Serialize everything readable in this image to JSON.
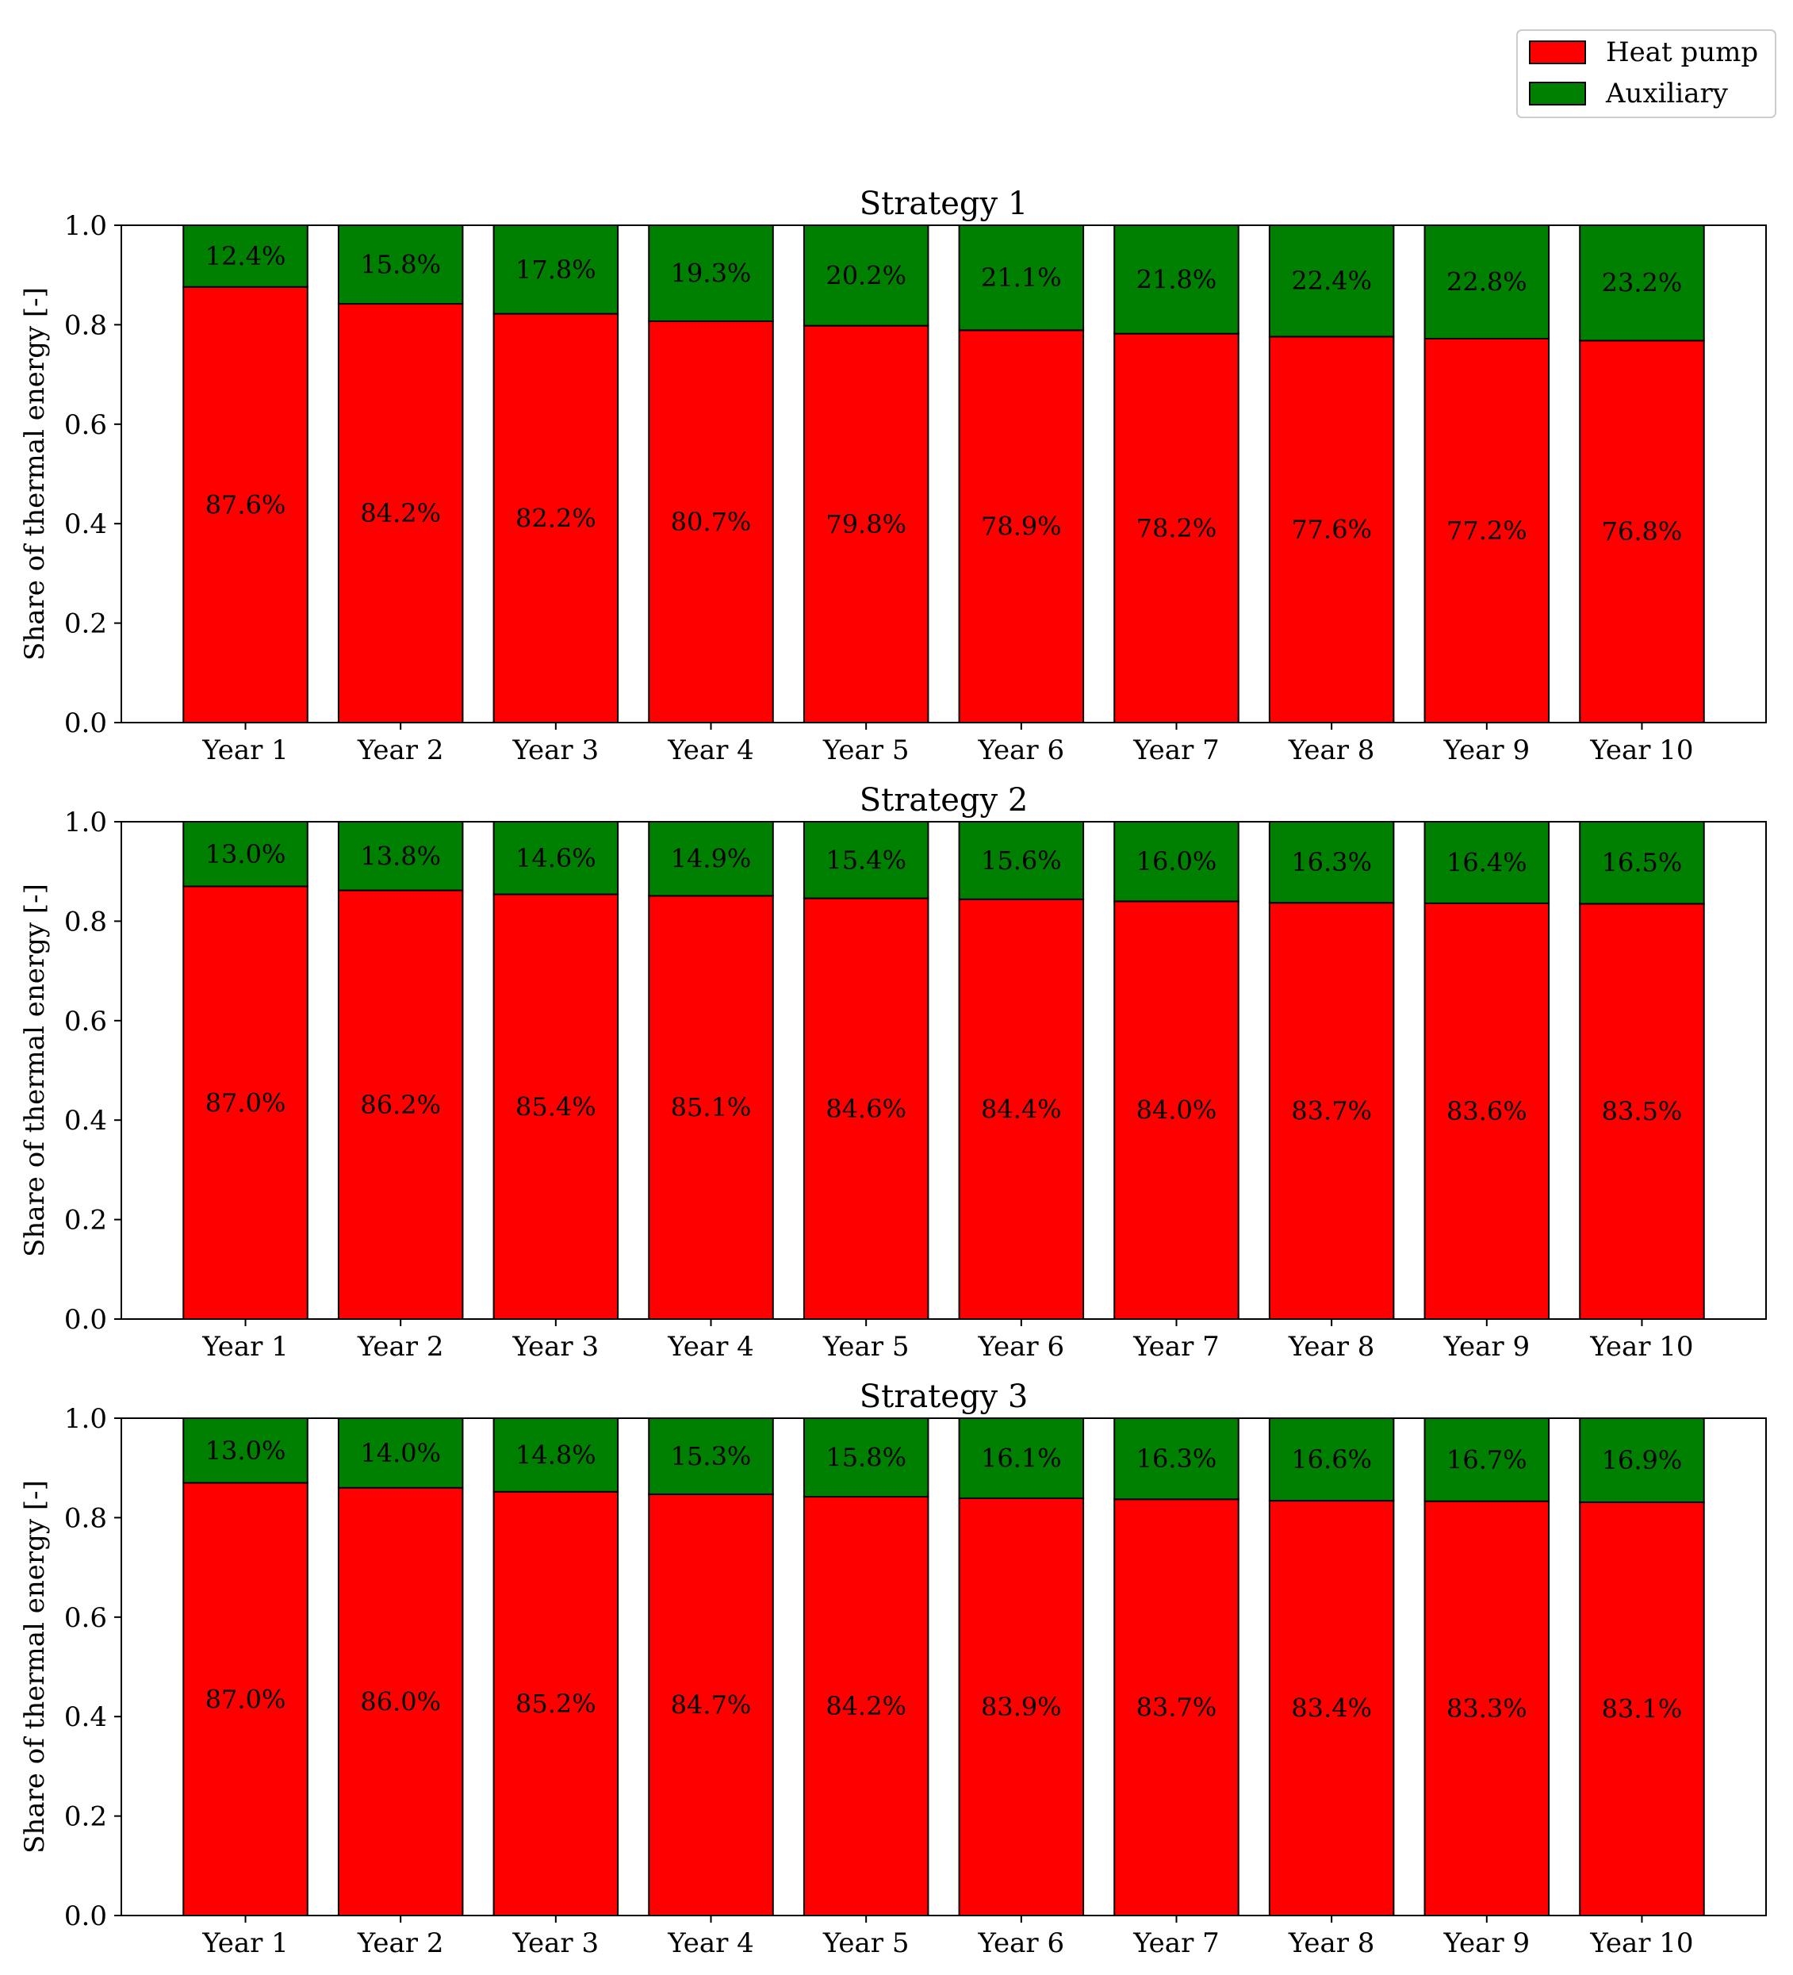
{
  "chart_data": [
    {
      "type": "bar",
      "stacked": true,
      "title": "Strategy 1",
      "ylabel": "Share of thermal energy [-]",
      "ylim": [
        0,
        1
      ],
      "yticks": [
        "0.0",
        "0.2",
        "0.4",
        "0.6",
        "0.8",
        "1.0"
      ],
      "categories": [
        "Year 1",
        "Year 2",
        "Year 3",
        "Year 4",
        "Year 5",
        "Year 6",
        "Year 7",
        "Year 8",
        "Year 9",
        "Year 10"
      ],
      "series": [
        {
          "name": "Heat pump",
          "values": [
            0.876,
            0.842,
            0.822,
            0.807,
            0.798,
            0.789,
            0.782,
            0.776,
            0.772,
            0.768
          ],
          "labels": [
            "87.6%",
            "84.2%",
            "82.2%",
            "80.7%",
            "79.8%",
            "78.9%",
            "78.2%",
            "77.6%",
            "77.2%",
            "76.8%"
          ]
        },
        {
          "name": "Auxiliary",
          "values": [
            0.124,
            0.158,
            0.178,
            0.193,
            0.202,
            0.211,
            0.218,
            0.224,
            0.228,
            0.232
          ],
          "labels": [
            "12.4%",
            "15.8%",
            "17.8%",
            "19.3%",
            "20.2%",
            "21.1%",
            "21.8%",
            "22.4%",
            "22.8%",
            "23.2%"
          ]
        }
      ]
    },
    {
      "type": "bar",
      "stacked": true,
      "title": "Strategy 2",
      "ylabel": "Share of thermal energy [-]",
      "ylim": [
        0,
        1
      ],
      "yticks": [
        "0.0",
        "0.2",
        "0.4",
        "0.6",
        "0.8",
        "1.0"
      ],
      "categories": [
        "Year 1",
        "Year 2",
        "Year 3",
        "Year 4",
        "Year 5",
        "Year 6",
        "Year 7",
        "Year 8",
        "Year 9",
        "Year 10"
      ],
      "series": [
        {
          "name": "Heat pump",
          "values": [
            0.87,
            0.862,
            0.854,
            0.851,
            0.846,
            0.844,
            0.84,
            0.837,
            0.836,
            0.835
          ],
          "labels": [
            "87.0%",
            "86.2%",
            "85.4%",
            "85.1%",
            "84.6%",
            "84.4%",
            "84.0%",
            "83.7%",
            "83.6%",
            "83.5%"
          ]
        },
        {
          "name": "Auxiliary",
          "values": [
            0.13,
            0.138,
            0.146,
            0.149,
            0.154,
            0.156,
            0.16,
            0.163,
            0.164,
            0.165
          ],
          "labels": [
            "13.0%",
            "13.8%",
            "14.6%",
            "14.9%",
            "15.4%",
            "15.6%",
            "16.0%",
            "16.3%",
            "16.4%",
            "16.5%"
          ]
        }
      ]
    },
    {
      "type": "bar",
      "stacked": true,
      "title": "Strategy 3",
      "ylabel": "Share of thermal energy [-]",
      "ylim": [
        0,
        1
      ],
      "yticks": [
        "0.0",
        "0.2",
        "0.4",
        "0.6",
        "0.8",
        "1.0"
      ],
      "categories": [
        "Year 1",
        "Year 2",
        "Year 3",
        "Year 4",
        "Year 5",
        "Year 6",
        "Year 7",
        "Year 8",
        "Year 9",
        "Year 10"
      ],
      "series": [
        {
          "name": "Heat pump",
          "values": [
            0.87,
            0.86,
            0.852,
            0.847,
            0.842,
            0.839,
            0.837,
            0.834,
            0.833,
            0.831
          ],
          "labels": [
            "87.0%",
            "86.0%",
            "85.2%",
            "84.7%",
            "84.2%",
            "83.9%",
            "83.7%",
            "83.4%",
            "83.3%",
            "83.1%"
          ]
        },
        {
          "name": "Auxiliary",
          "values": [
            0.13,
            0.14,
            0.148,
            0.153,
            0.158,
            0.161,
            0.163,
            0.166,
            0.167,
            0.169
          ],
          "labels": [
            "13.0%",
            "14.0%",
            "14.8%",
            "15.3%",
            "15.8%",
            "16.1%",
            "16.3%",
            "16.6%",
            "16.7%",
            "16.9%"
          ]
        }
      ]
    }
  ],
  "legend": {
    "placement": "top-right",
    "entries": [
      {
        "name": "Heat pump",
        "color": "#ff0000"
      },
      {
        "name": "Auxiliary",
        "color": "#008000"
      }
    ]
  },
  "colors": {
    "heat_pump": "#ff0000",
    "auxiliary": "#008000",
    "edge": "#000000"
  }
}
